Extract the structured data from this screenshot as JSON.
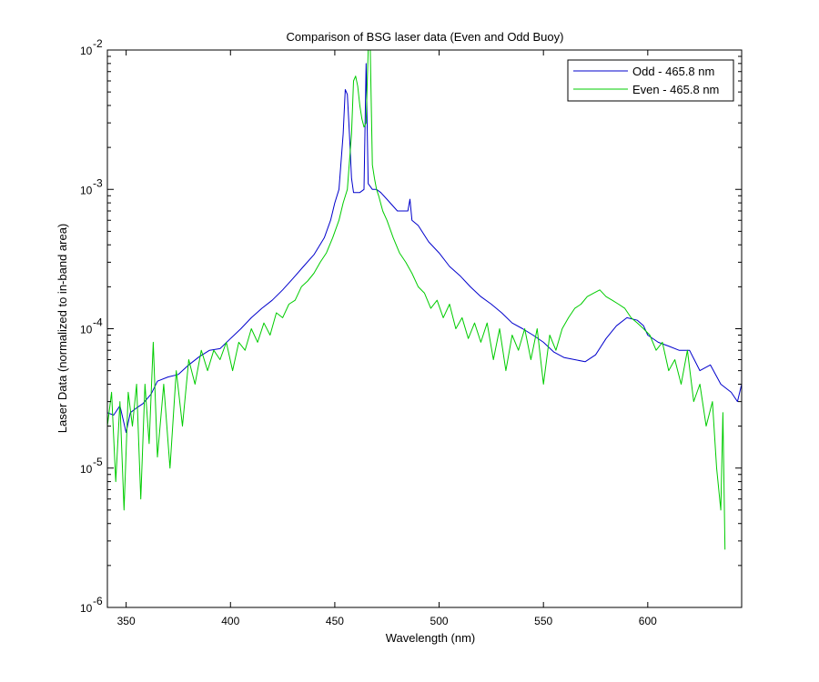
{
  "chart_data": {
    "type": "line",
    "title": "Comparison of BSG laser data (Even and Odd Buoy)",
    "xlabel": "Wavelength (nm)",
    "ylabel": "Laser Data (normalized to in-band area)",
    "xlim": [
      341,
      645
    ],
    "ylim": [
      1e-06,
      0.01
    ],
    "yscale": "log",
    "xticks": [
      350,
      400,
      450,
      500,
      550,
      600
    ],
    "xtick_labels": [
      "350",
      "400",
      "450",
      "500",
      "550",
      "600"
    ],
    "yticks": [
      1e-06,
      1e-05,
      0.0001,
      0.001,
      0.01
    ],
    "ytick_labels": [
      {
        "base": "10",
        "exp": "-6"
      },
      {
        "base": "10",
        "exp": "-5"
      },
      {
        "base": "10",
        "exp": "-4"
      },
      {
        "base": "10",
        "exp": "-3"
      },
      {
        "base": "10",
        "exp": "-2"
      }
    ],
    "grid": false,
    "legend_position": "top-right",
    "series": [
      {
        "name": "Odd - 465.8 nm",
        "color": "#0000cc",
        "x": [
          341,
          344,
          347,
          350,
          352,
          355,
          358,
          362,
          365,
          370,
          375,
          380,
          385,
          390,
          395,
          400,
          405,
          410,
          415,
          420,
          425,
          430,
          435,
          440,
          445,
          448,
          450,
          452,
          454,
          455,
          456,
          457,
          458,
          459,
          460,
          462,
          464,
          465,
          466,
          468,
          470,
          472,
          475,
          480,
          485,
          486,
          487,
          490,
          495,
          500,
          505,
          510,
          515,
          520,
          525,
          530,
          535,
          540,
          545,
          550,
          555,
          560,
          565,
          570,
          575,
          580,
          585,
          590,
          595,
          598,
          600,
          605,
          610,
          615,
          620,
          625,
          630,
          635,
          640,
          643,
          645
        ],
        "y": [
          2.5e-05,
          2.4e-05,
          2.8e-05,
          1.8e-05,
          2.5e-05,
          2.7e-05,
          2.9e-05,
          3.4e-05,
          4.2e-05,
          4.5e-05,
          4.7e-05,
          5.5e-05,
          6.3e-05,
          7e-05,
          7.2e-05,
          8.5e-05,
          0.0001,
          0.00012,
          0.00014,
          0.00016,
          0.00019,
          0.00023,
          0.00028,
          0.00034,
          0.00045,
          0.0006,
          0.0008,
          0.001,
          0.0025,
          0.0052,
          0.0048,
          0.0025,
          0.0012,
          0.00095,
          0.00095,
          0.00095,
          0.001,
          0.008,
          0.0011,
          0.001,
          0.001,
          0.00095,
          0.00085,
          0.0007,
          0.0007,
          0.00085,
          0.0006,
          0.00055,
          0.00042,
          0.00035,
          0.00028,
          0.00024,
          0.0002,
          0.00017,
          0.00015,
          0.00013,
          0.00011,
          0.0001,
          9e-05,
          8e-05,
          6.8e-05,
          6.2e-05,
          6e-05,
          5.8e-05,
          6.5e-05,
          8.5e-05,
          0.000105,
          0.00012,
          0.000115,
          0.000105,
          9e-05,
          8e-05,
          7.5e-05,
          7e-05,
          7e-05,
          5e-05,
          5.5e-05,
          4e-05,
          3.5e-05,
          3e-05,
          4e-05
        ]
      },
      {
        "name": "Even - 465.8 nm",
        "color": "#00cc00",
        "x": [
          341,
          343,
          345,
          347,
          349,
          351,
          353,
          355,
          357,
          359,
          361,
          363,
          365,
          368,
          371,
          374,
          377,
          380,
          383,
          386,
          389,
          392,
          395,
          398,
          401,
          404,
          407,
          410,
          413,
          416,
          419,
          422,
          425,
          428,
          431,
          434,
          437,
          440,
          443,
          446,
          449,
          452,
          454,
          456,
          458,
          459,
          460,
          461,
          462,
          463,
          464,
          465,
          466,
          467,
          468,
          469,
          470,
          471,
          473,
          475,
          478,
          481,
          484,
          487,
          490,
          493,
          496,
          499,
          502,
          505,
          508,
          511,
          514,
          517,
          520,
          523,
          526,
          529,
          532,
          535,
          538,
          541,
          544,
          547,
          550,
          553,
          556,
          559,
          562,
          565,
          568,
          571,
          574,
          577,
          580,
          583,
          586,
          589,
          592,
          595,
          598,
          601,
          604,
          607,
          610,
          613,
          616,
          619,
          622,
          625,
          628,
          631,
          633,
          635,
          636,
          637
        ],
        "y": [
          2e-05,
          3.5e-05,
          8e-06,
          3e-05,
          5e-06,
          3.5e-05,
          2e-05,
          4e-05,
          6e-06,
          4e-05,
          1.5e-05,
          8e-05,
          1.2e-05,
          4e-05,
          1e-05,
          5e-05,
          2e-05,
          6e-05,
          4e-05,
          7e-05,
          5e-05,
          7e-05,
          6e-05,
          8e-05,
          5e-05,
          8e-05,
          7e-05,
          0.0001,
          8e-05,
          0.00011,
          9e-05,
          0.00013,
          0.00012,
          0.00015,
          0.00016,
          0.0002,
          0.00022,
          0.00025,
          0.0003,
          0.00035,
          0.00045,
          0.0006,
          0.0008,
          0.001,
          0.0025,
          0.006,
          0.0065,
          0.0055,
          0.004,
          0.0032,
          0.0028,
          0.003,
          0.01,
          0.01,
          0.0015,
          0.0012,
          0.001,
          0.0009,
          0.0007,
          0.0006,
          0.00045,
          0.00035,
          0.0003,
          0.00025,
          0.0002,
          0.00018,
          0.00014,
          0.00016,
          0.00012,
          0.00015,
          0.0001,
          0.00012,
          8.5e-05,
          0.00011,
          8e-05,
          0.00011,
          6e-05,
          0.0001,
          5e-05,
          9e-05,
          7e-05,
          0.0001,
          6e-05,
          0.0001,
          4e-05,
          9e-05,
          7e-05,
          0.0001,
          0.00012,
          0.00014,
          0.00015,
          0.00017,
          0.00018,
          0.00019,
          0.00017,
          0.00016,
          0.00015,
          0.00014,
          0.00012,
          0.00011,
          0.0001,
          9e-05,
          7e-05,
          8e-05,
          5e-05,
          6e-05,
          4e-05,
          7e-05,
          3e-05,
          4e-05,
          2e-05,
          3e-05,
          1e-05,
          5e-06,
          2.5e-05,
          2.6e-06
        ]
      }
    ]
  }
}
